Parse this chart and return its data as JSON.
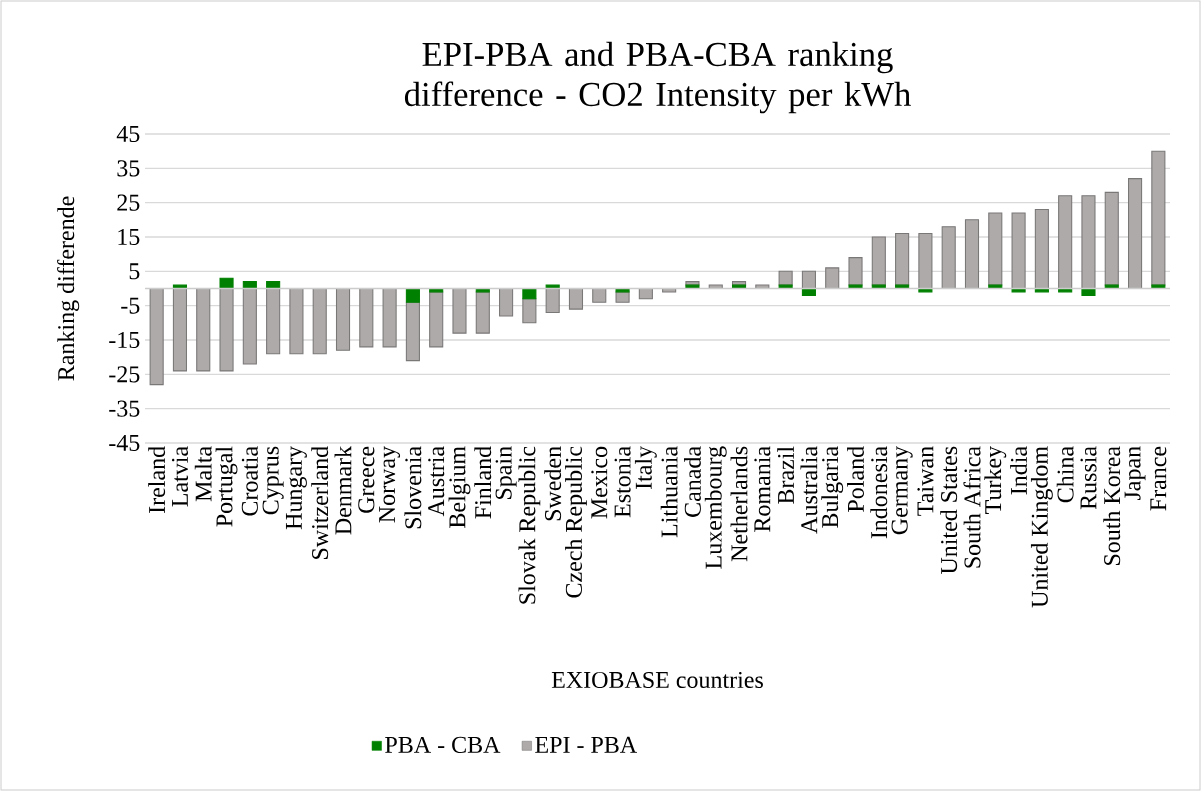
{
  "chart_data": {
    "type": "bar",
    "stacked": true,
    "title": "EPI-PBA and PBA-CBA ranking difference - CO2 Intensity per kWh",
    "xlabel": "EXIOBASE countries",
    "ylabel": "Ranking differende",
    "categories": [
      "Ireland",
      "Latvia",
      "Malta",
      "Portugal",
      "Croatia",
      "Cyprus",
      "Hungary",
      "Switzerland",
      "Denmark",
      "Greece",
      "Norway",
      "Slovenia",
      "Austria",
      "Belgium",
      "Finland",
      "Spain",
      "Slovak Republic",
      "Sweden",
      "Czech Republic",
      "Mexico",
      "Estonia",
      "Italy",
      "Lithuania",
      "Canada",
      "Luxembourg",
      "Netherlands",
      "Romania",
      "Brazil",
      "Australia",
      "Bulgaria",
      "Poland",
      "Indonesia",
      "Germany",
      "Taiwan",
      "United States",
      "South Africa",
      "Turkey",
      "India",
      "United Kingdom",
      "China",
      "Russia",
      "South Korea",
      "Japan",
      "France"
    ],
    "series": [
      {
        "name": "PBA - CBA",
        "color": "#008000",
        "values": [
          0,
          1,
          0,
          3,
          2,
          2,
          0,
          0,
          0,
          0,
          0,
          -4,
          -1,
          0,
          -1,
          0,
          -3,
          1,
          0,
          0,
          -1,
          0,
          0,
          1,
          0,
          1,
          0,
          1,
          -2,
          0,
          1,
          1,
          1,
          -1,
          0,
          0,
          1,
          -1,
          -1,
          -1,
          -2,
          1,
          0,
          1
        ]
      },
      {
        "name": "EPI - PBA",
        "color": "#aeaaaa",
        "values": [
          -28,
          -24,
          -24,
          -24,
          -22,
          -19,
          -19,
          -19,
          -18,
          -17,
          -17,
          -17,
          -16,
          -13,
          -12,
          -8,
          -7,
          -7,
          -6,
          -4,
          -3,
          -3,
          -1,
          1,
          1,
          1,
          1,
          4,
          5,
          6,
          8,
          14,
          15,
          16,
          18,
          20,
          21,
          22,
          23,
          27,
          27,
          27,
          32,
          39
        ]
      }
    ],
    "ylim": [
      -45,
      45
    ],
    "yticks": [
      -45,
      -35,
      -25,
      -15,
      -5,
      5,
      15,
      25,
      35,
      45
    ],
    "grid": "y",
    "legend": "bottom"
  }
}
